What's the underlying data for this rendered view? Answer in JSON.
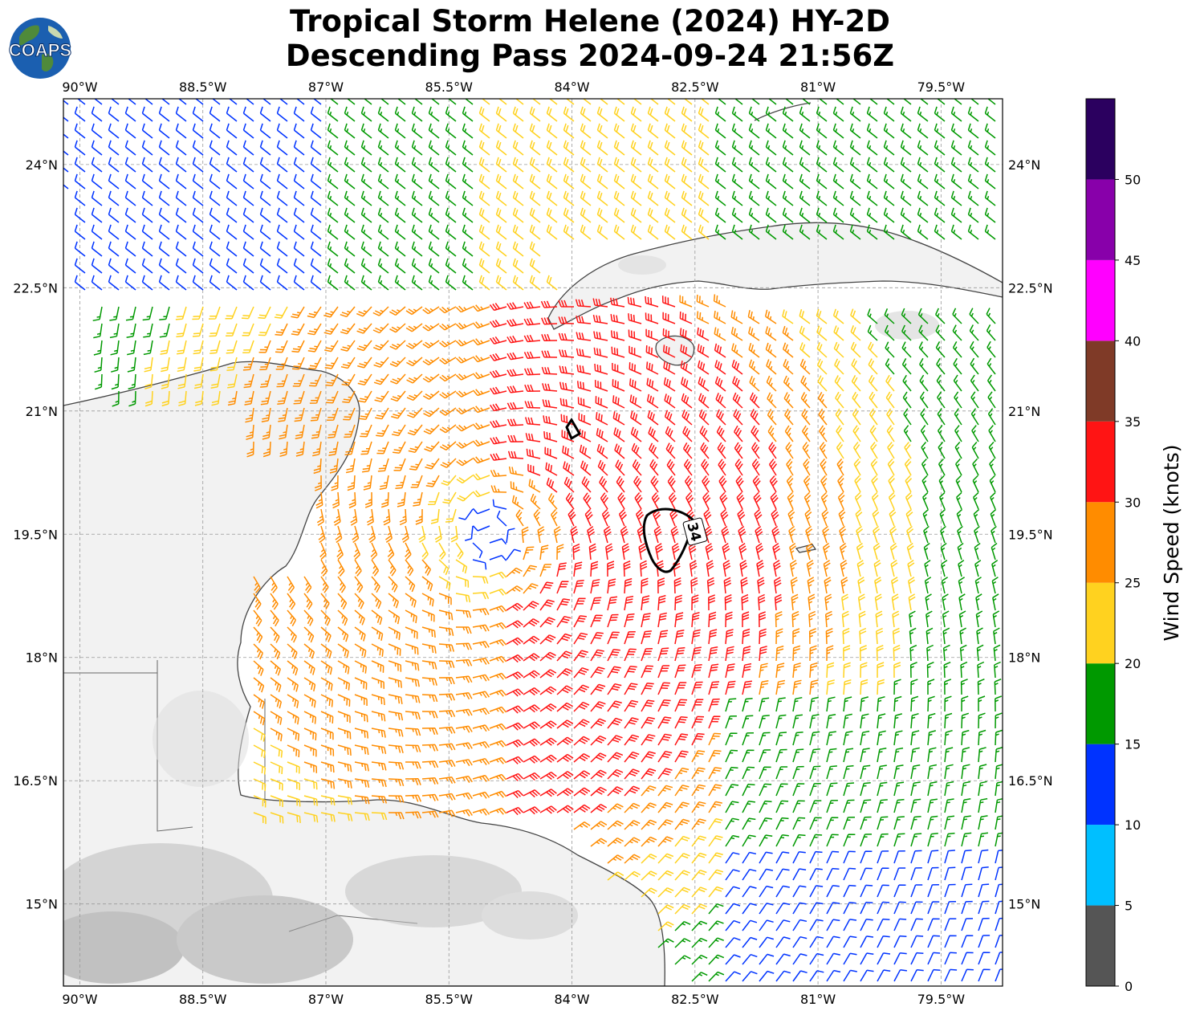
{
  "title": {
    "line1": "Tropical Storm Helene (2024) HY-2D",
    "line2": "Descending Pass 2024-09-24 21:56Z"
  },
  "logo": {
    "text": "COAPS",
    "icon": "globe-icon"
  },
  "map": {
    "lon_range": [
      -90.2,
      -78.75
    ],
    "lat_range": [
      14.0,
      24.8
    ],
    "lon_ticks": [
      "90°W",
      "88.5°W",
      "87°W",
      "85.5°W",
      "84°W",
      "82.5°W",
      "81°W",
      "79.5°W"
    ],
    "lon_tick_values": [
      -90,
      -88.5,
      -87,
      -85.5,
      -84,
      -82.5,
      -81,
      -79.5
    ],
    "lat_ticks": [
      "15°N",
      "16.5°N",
      "18°N",
      "19.5°N",
      "21°N",
      "22.5°N",
      "24°N"
    ],
    "lat_tick_values": [
      15,
      16.5,
      18,
      19.5,
      21,
      22.5,
      24
    ],
    "grid": true,
    "storm_center": {
      "lon": -85.0,
      "lat": 19.5
    },
    "contour": {
      "label": "34",
      "level_knots": 34
    }
  },
  "colorbar": {
    "label": "Wind Speed (knots)",
    "tick_labels": [
      "0",
      "5",
      "10",
      "15",
      "20",
      "25",
      "30",
      "35",
      "40",
      "45",
      "50"
    ],
    "bins": [
      {
        "min": 0,
        "max": 5,
        "color": "#555555"
      },
      {
        "min": 5,
        "max": 10,
        "color": "#00bfff"
      },
      {
        "min": 10,
        "max": 15,
        "color": "#0033ff"
      },
      {
        "min": 15,
        "max": 20,
        "color": "#009900"
      },
      {
        "min": 20,
        "max": 25,
        "color": "#ffd21f"
      },
      {
        "min": 25,
        "max": 30,
        "color": "#ff8c00"
      },
      {
        "min": 30,
        "max": 35,
        "color": "#ff1414"
      },
      {
        "min": 35,
        "max": 40,
        "color": "#7f3a27"
      },
      {
        "min": 40,
        "max": 45,
        "color": "#ff00ff"
      },
      {
        "min": 45,
        "max": 50,
        "color": "#8800aa"
      },
      {
        "min": 50,
        "max": 55,
        "color": "#2b005f"
      }
    ]
  }
}
